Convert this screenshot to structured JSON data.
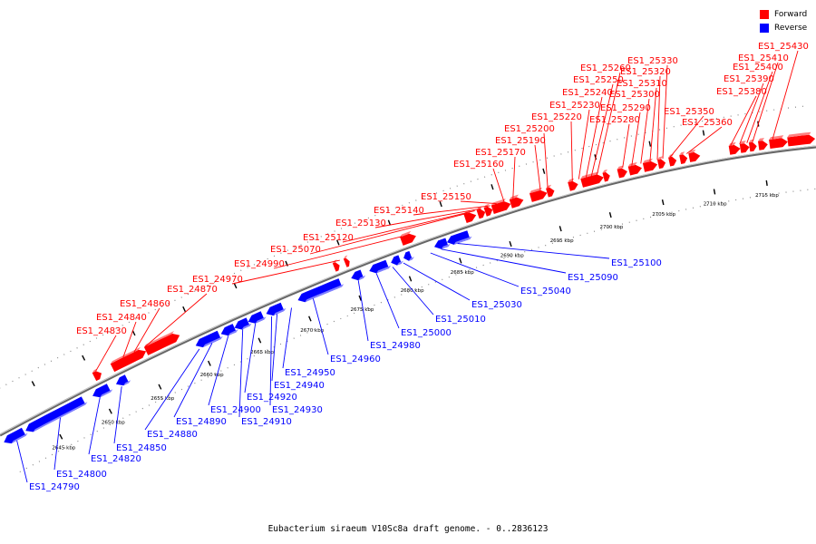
{
  "legend": {
    "forward": {
      "label": "Forward",
      "color": "#ff0000"
    },
    "reverse": {
      "label": "Reverse",
      "color": "#0000ff"
    }
  },
  "caption": "Eubacterium siraeum V10Sc8a draft genome. - 0..2836123",
  "scale": {
    "unit": "kbp",
    "ticks": [
      "2645 kbp",
      "2650 kbp",
      "2655 kbp",
      "2660 kbp",
      "2665 kbp",
      "2670 kbp",
      "2675 kbp",
      "2680 kbp",
      "2685 kbp",
      "2690 kbp",
      "2695 kbp",
      "2700 kbp",
      "2705 kbp",
      "2710 kbp",
      "2715 kbp"
    ]
  },
  "genes": {
    "forward": [
      "ES1_24830",
      "ES1_24840",
      "ES1_24860",
      "ES1_24870",
      "ES1_24970",
      "ES1_24990",
      "ES1_25070",
      "ES1_25120",
      "ES1_25130",
      "ES1_25140",
      "ES1_25150",
      "ES1_25160",
      "ES1_25170",
      "ES1_25190",
      "ES1_25200",
      "ES1_25220",
      "ES1_25230",
      "ES1_25240",
      "ES1_25250",
      "ES1_25260",
      "ES1_25280",
      "ES1_25290",
      "ES1_25300",
      "ES1_25310",
      "ES1_25320",
      "ES1_25330",
      "ES1_25350",
      "ES1_25360",
      "ES1_25380",
      "ES1_25390",
      "ES1_25400",
      "ES1_25410",
      "ES1_25430"
    ],
    "reverse": [
      "ES1_24790",
      "ES1_24800",
      "ES1_24820",
      "ES1_24850",
      "ES1_24880",
      "ES1_24890",
      "ES1_24900",
      "ES1_24910",
      "ES1_24920",
      "ES1_24930",
      "ES1_24940",
      "ES1_24950",
      "ES1_24960",
      "ES1_24980",
      "ES1_25000",
      "ES1_25010",
      "ES1_25030",
      "ES1_25040",
      "ES1_25090",
      "ES1_25100"
    ]
  }
}
